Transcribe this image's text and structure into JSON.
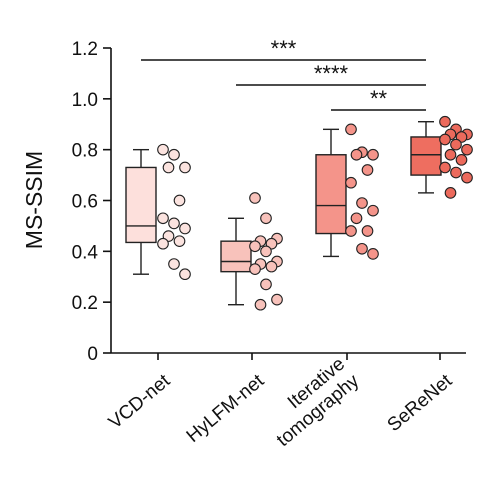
{
  "chart_data": {
    "type": "box",
    "ylabel": "MS-SSIM",
    "ylim": [
      0,
      1.2
    ],
    "yticks": [
      "0",
      "0.2",
      "0.4",
      "0.6",
      "0.8",
      "1.0",
      "1.2"
    ],
    "categories": [
      {
        "label_lines": [
          "VCD-net"
        ]
      },
      {
        "label_lines": [
          "HyLFM-net"
        ]
      },
      {
        "label_lines": [
          "Iterative",
          "tomography"
        ]
      },
      {
        "label_lines": [
          "SeReNet"
        ]
      }
    ],
    "series": [
      {
        "box_color": "#fde0dc",
        "point_color": "#fbe3df",
        "whisker_low": 0.31,
        "q1": 0.435,
        "median": 0.5,
        "q3": 0.73,
        "whisker_high": 0.8,
        "points": [
          0.8,
          0.78,
          0.73,
          0.73,
          0.6,
          0.53,
          0.51,
          0.49,
          0.46,
          0.44,
          0.43,
          0.35,
          0.31
        ]
      },
      {
        "box_color": "#f8c2bb",
        "point_color": "#f8c2bb",
        "whisker_low": 0.19,
        "q1": 0.32,
        "median": 0.36,
        "q3": 0.44,
        "whisker_high": 0.53,
        "points": [
          0.61,
          0.53,
          0.45,
          0.44,
          0.43,
          0.42,
          0.4,
          0.36,
          0.35,
          0.34,
          0.33,
          0.27,
          0.21,
          0.19
        ]
      },
      {
        "box_color": "#f4948a",
        "point_color": "#f4948a",
        "whisker_low": 0.38,
        "q1": 0.47,
        "median": 0.58,
        "q3": 0.78,
        "whisker_high": 0.88,
        "points": [
          0.88,
          0.79,
          0.78,
          0.78,
          0.72,
          0.67,
          0.59,
          0.56,
          0.53,
          0.48,
          0.48,
          0.41,
          0.39
        ]
      },
      {
        "box_color": "#ee6e60",
        "point_color": "#ec6a5c",
        "whisker_low": 0.63,
        "q1": 0.7,
        "median": 0.78,
        "q3": 0.85,
        "whisker_high": 0.91,
        "points": [
          0.91,
          0.88,
          0.86,
          0.86,
          0.85,
          0.84,
          0.82,
          0.8,
          0.78,
          0.76,
          0.73,
          0.71,
          0.69,
          0.63
        ]
      }
    ],
    "significance": [
      {
        "from": 0,
        "to": 3,
        "label": "***"
      },
      {
        "from": 1,
        "to": 3,
        "label": "****"
      },
      {
        "from": 2,
        "to": 3,
        "label": "**"
      }
    ]
  }
}
